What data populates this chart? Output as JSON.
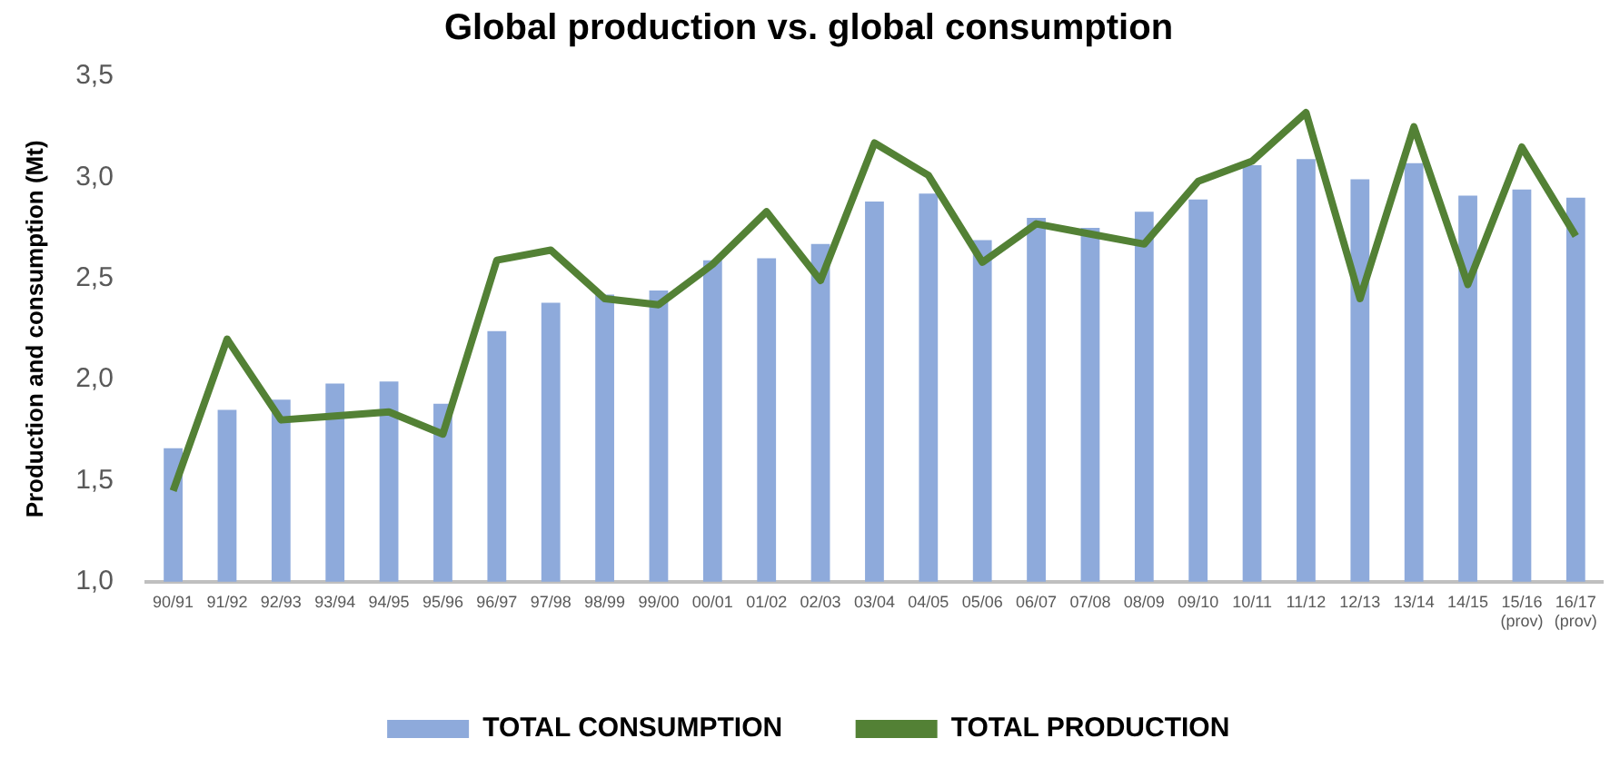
{
  "chart_data": {
    "type": "bar",
    "title": "Global production vs. global consumption",
    "ylabel": "Production and consumption (Mt)",
    "categories": [
      "90/91",
      "91/92",
      "92/93",
      "93/94",
      "94/95",
      "95/96",
      "96/97",
      "97/98",
      "98/99",
      "99/00",
      "00/01",
      "01/02",
      "02/03",
      "03/04",
      "04/05",
      "05/06",
      "06/07",
      "07/08",
      "08/09",
      "09/10",
      "10/11",
      "11/12",
      "12/13",
      "13/14",
      "14/15",
      "15/16 (prov)",
      "16/17 (prov)"
    ],
    "series": [
      {
        "name": "TOTAL CONSUMPTION",
        "color": "#8eaadb",
        "values": [
          1.66,
          1.85,
          1.9,
          1.98,
          1.99,
          1.88,
          2.24,
          2.38,
          2.42,
          2.44,
          2.59,
          2.6,
          2.67,
          2.88,
          2.92,
          2.69,
          2.8,
          2.75,
          2.83,
          2.89,
          3.06,
          3.09,
          2.99,
          3.07,
          2.91,
          2.94,
          2.9
        ]
      },
      {
        "name": "TOTAL PRODUCTION",
        "type": "line",
        "color": "#538135",
        "values": [
          1.45,
          2.2,
          1.8,
          1.82,
          1.84,
          1.73,
          2.59,
          2.64,
          2.4,
          2.37,
          2.57,
          2.83,
          2.49,
          3.17,
          3.01,
          2.58,
          2.77,
          2.72,
          2.67,
          2.98,
          3.08,
          3.32,
          2.4,
          3.25,
          2.47,
          3.15,
          2.71
        ]
      }
    ],
    "ylim": [
      1,
      3.5
    ],
    "yticks": [
      {
        "value": 1,
        "label": "1,0"
      },
      {
        "value": 1.5,
        "label": "1,5"
      },
      {
        "value": 2,
        "label": "2,0"
      },
      {
        "value": 2.5,
        "label": "2,5"
      },
      {
        "value": 3,
        "label": "3,0"
      },
      {
        "value": 3.5,
        "label": "3,5"
      }
    ],
    "grid": false,
    "legend": "bottom",
    "marker": "none"
  }
}
